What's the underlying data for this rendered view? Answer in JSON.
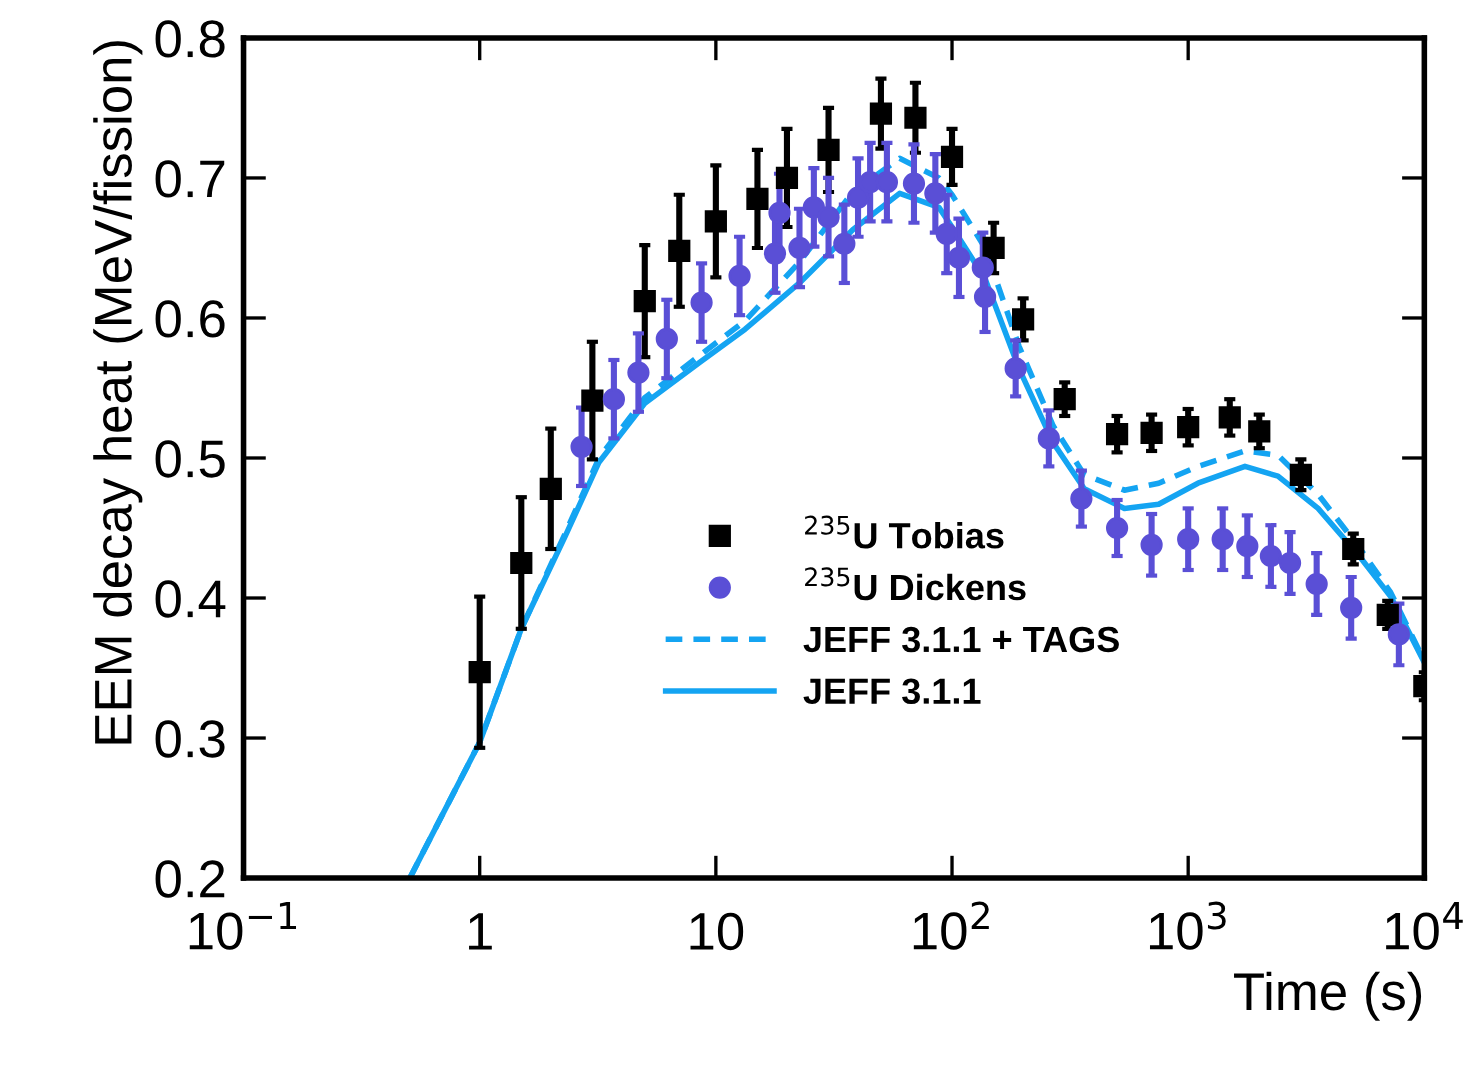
{
  "chart_data": {
    "type": "scatter",
    "xlabel": "Time (s)",
    "ylabel": "EEM decay heat (MeV/fission)",
    "log": "x",
    "xlim": [
      0.1,
      10000
    ],
    "xticks": [
      {
        "value": 0.1,
        "label": "10$^{−1}$"
      },
      1,
      10,
      {
        "value": 100,
        "label": "10$^{2}$"
      },
      {
        "value": 1000,
        "label": "10$^{3}$"
      },
      {
        "value": 10000,
        "label": "10$^{4}$"
      }
    ],
    "ylim": [
      0.2,
      0.8
    ],
    "yticks": [
      0.2,
      0.3,
      0.4,
      0.5,
      0.6,
      0.7,
      0.8
    ],
    "grid": false,
    "legend": "bottom",
    "series": [
      {
        "name": "$^{235}$U Tobias",
        "marker": "square",
        "color": "#000000",
        "x": [
          1,
          1.5,
          2,
          3,
          5,
          7,
          10,
          15,
          20,
          30,
          50,
          70,
          100,
          150,
          200,
          300,
          500,
          700,
          1000,
          1500,
          2000,
          3000,
          5000,
          7000,
          10000
        ],
        "values": [
          0.347,
          0.425,
          0.478,
          0.541,
          0.612,
          0.648,
          0.669,
          0.685,
          0.7,
          0.72,
          0.746,
          0.743,
          0.715,
          0.65,
          0.599,
          0.542,
          0.517,
          0.518,
          0.522,
          0.529,
          0.519,
          0.488,
          0.435,
          0.388,
          0.337
        ],
        "errors": [
          0.054,
          0.047,
          0.043,
          0.042,
          0.04,
          0.04,
          0.04,
          0.035,
          0.035,
          0.03,
          0.025,
          0.025,
          0.02,
          0.018,
          0.015,
          0.012,
          0.013,
          0.013,
          0.013,
          0.013,
          0.012,
          0.011,
          0.011,
          0.01,
          0.01
        ]
      },
      {
        "name": "$^{235}$U Dickens",
        "marker": "circle",
        "color": "#5a4fd6",
        "x": [
          2.7,
          3.7,
          4.7,
          6.2,
          8.7,
          12.6,
          17.8,
          18.6,
          22.6,
          26,
          30,
          35,
          40,
          45,
          53,
          69,
          85,
          95,
          107,
          135,
          138,
          186,
          257,
          353,
          500,
          700,
          1000,
          1400,
          1780,
          2240,
          2700,
          3500,
          4900,
          7800
        ],
        "values": [
          0.508,
          0.542,
          0.561,
          0.585,
          0.611,
          0.63,
          0.646,
          0.675,
          0.65,
          0.679,
          0.672,
          0.653,
          0.686,
          0.697,
          0.697,
          0.696,
          0.689,
          0.66,
          0.643,
          0.636,
          0.615,
          0.564,
          0.514,
          0.471,
          0.45,
          0.438,
          0.442,
          0.442,
          0.437,
          0.43,
          0.425,
          0.41,
          0.393,
          0.374
        ],
        "errors": [
          0.028,
          0.028,
          0.028,
          0.028,
          0.028,
          0.028,
          0.028,
          0.028,
          0.028,
          0.028,
          0.028,
          0.028,
          0.028,
          0.028,
          0.028,
          0.028,
          0.028,
          0.028,
          0.028,
          0.025,
          0.025,
          0.02,
          0.02,
          0.02,
          0.02,
          0.022,
          0.022,
          0.022,
          0.022,
          0.022,
          0.022,
          0.022,
          0.022,
          0.022
        ]
      },
      {
        "name": "JEFF 3.1.1 + TAGS",
        "type": "line",
        "line_style": "dashed",
        "marker": "none",
        "color": "#14a4f2",
        "x": [
          0.506,
          1,
          1.5,
          2.3,
          3.2,
          5,
          8.5,
          13.3,
          22.6,
          38,
          60,
          88,
          100,
          138,
          192,
          268,
          363,
          537,
          750,
          1100,
          1740,
          2400,
          3550,
          5300,
          7200,
          10000
        ],
        "values": [
          0.2,
          0.297,
          0.378,
          0.446,
          0.5,
          0.543,
          0.573,
          0.598,
          0.64,
          0.69,
          0.714,
          0.7,
          0.688,
          0.65,
          0.58,
          0.523,
          0.488,
          0.477,
          0.482,
          0.494,
          0.505,
          0.502,
          0.474,
          0.436,
          0.404,
          0.355
        ]
      },
      {
        "name": "JEFF 3.1.1",
        "type": "line",
        "line_style": "solid",
        "marker": "none",
        "color": "#14a4f2",
        "x": [
          0.506,
          1,
          1.5,
          2.3,
          3.2,
          5,
          8.5,
          13.3,
          22.6,
          38,
          60,
          88,
          100,
          138,
          192,
          268,
          363,
          537,
          750,
          1100,
          1740,
          2400,
          3550,
          5300,
          7200,
          10000
        ],
        "values": [
          0.2,
          0.297,
          0.378,
          0.444,
          0.497,
          0.539,
          0.568,
          0.592,
          0.625,
          0.663,
          0.689,
          0.679,
          0.665,
          0.628,
          0.564,
          0.511,
          0.478,
          0.464,
          0.467,
          0.482,
          0.494,
          0.487,
          0.464,
          0.43,
          0.401,
          0.354
        ]
      }
    ]
  }
}
